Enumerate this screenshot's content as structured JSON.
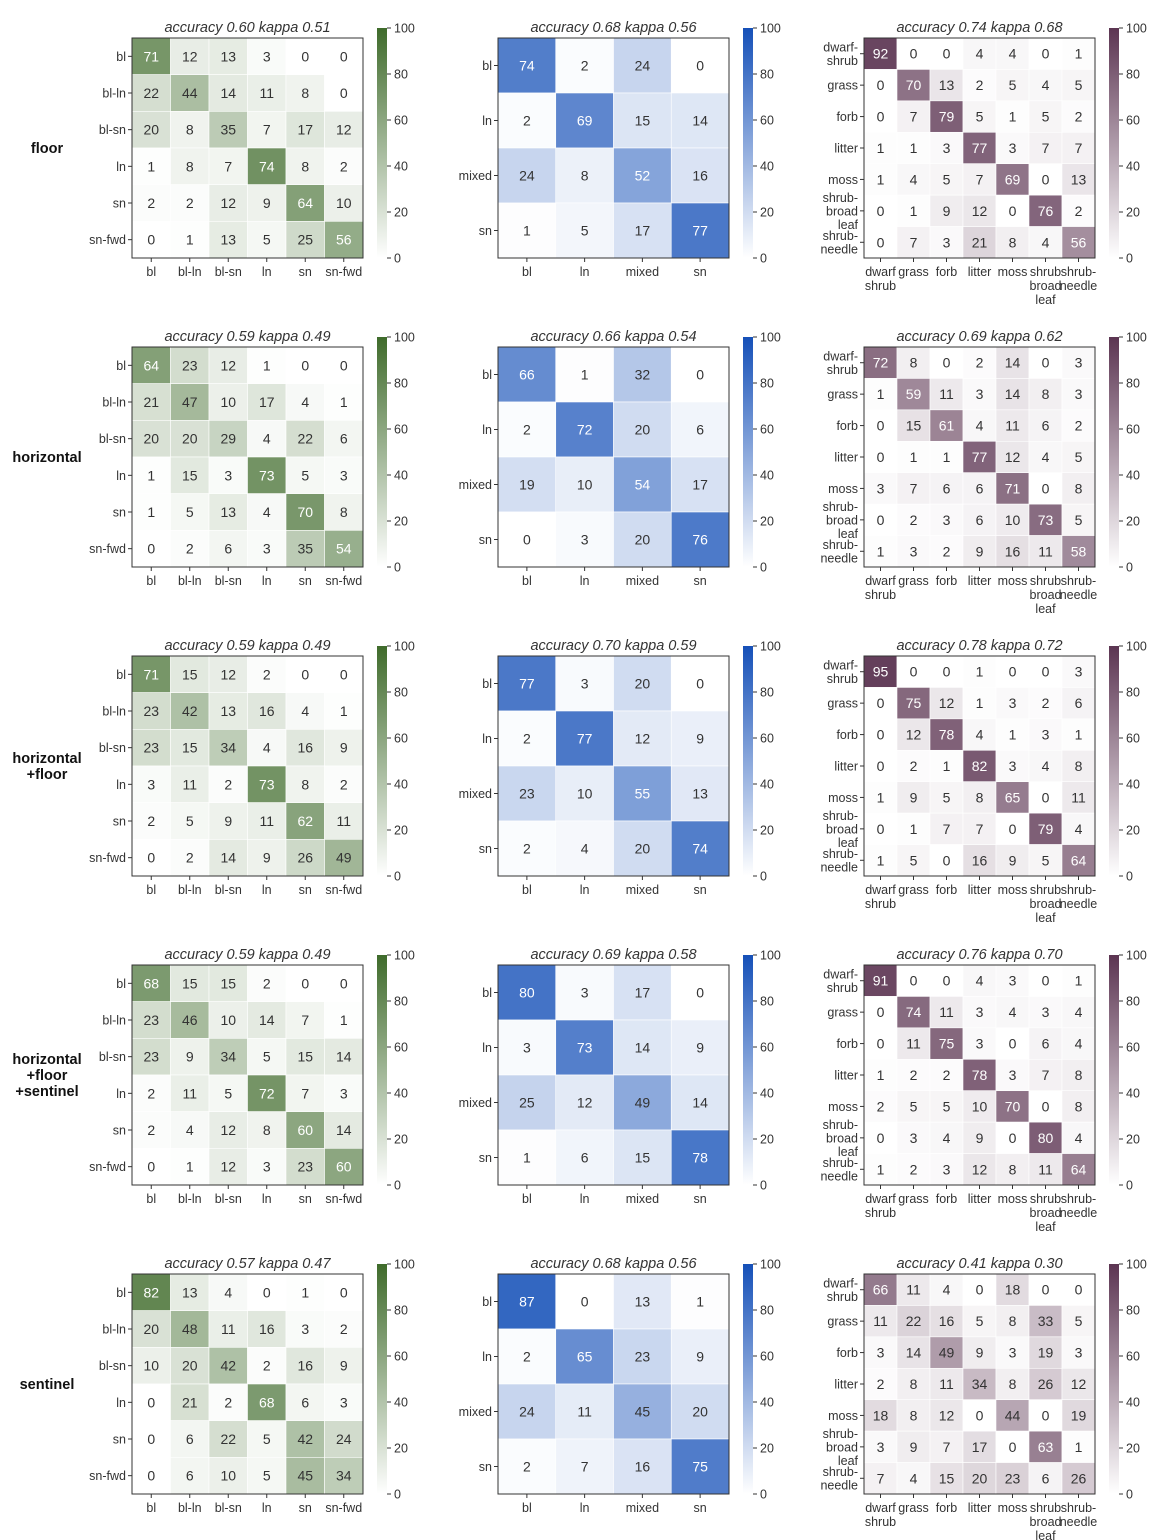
{
  "figure": {
    "row_labels": [
      [
        "floor"
      ],
      [
        "horizontal"
      ],
      [
        "horizontal",
        "+floor"
      ],
      [
        "horizontal",
        "+floor",
        "+sentinel"
      ],
      [
        "sentinel"
      ]
    ],
    "colorbar_ticks": [
      "100",
      "80",
      "60",
      "40",
      "20",
      "0"
    ]
  },
  "colors": {
    "green": "#3f6b2b",
    "blue": "#1550b8",
    "purple": "#5c3552"
  },
  "chart_data": [
    {
      "type": "heatmap",
      "row": 0,
      "col": 0,
      "color": "green",
      "title": "accuracy 0.60  kappa 0.51",
      "vmin": 0,
      "vmax": 100,
      "rows": [
        [
          "bl"
        ],
        [
          "bl-ln"
        ],
        [
          "bl-sn"
        ],
        [
          "ln"
        ],
        [
          "sn"
        ],
        [
          "sn-fwd"
        ]
      ],
      "cols": [
        [
          "bl"
        ],
        [
          "bl-ln"
        ],
        [
          "bl-sn"
        ],
        [
          "ln"
        ],
        [
          "sn"
        ],
        [
          "sn-fwd"
        ]
      ],
      "values": [
        [
          71,
          12,
          13,
          3,
          0,
          0
        ],
        [
          22,
          44,
          14,
          11,
          8,
          0
        ],
        [
          20,
          8,
          35,
          7,
          17,
          12
        ],
        [
          1,
          8,
          7,
          74,
          8,
          2
        ],
        [
          2,
          2,
          12,
          9,
          64,
          10
        ],
        [
          0,
          1,
          13,
          5,
          25,
          56
        ]
      ]
    },
    {
      "type": "heatmap",
      "row": 0,
      "col": 1,
      "color": "blue",
      "title": "accuracy 0.68  kappa 0.56",
      "vmin": 0,
      "vmax": 100,
      "rows": [
        [
          "bl"
        ],
        [
          "ln"
        ],
        [
          "mixed"
        ],
        [
          "sn"
        ]
      ],
      "cols": [
        [
          "bl"
        ],
        [
          "ln"
        ],
        [
          "mixed"
        ],
        [
          "sn"
        ]
      ],
      "values": [
        [
          74,
          2,
          24,
          0
        ],
        [
          2,
          69,
          15,
          14
        ],
        [
          24,
          8,
          52,
          16
        ],
        [
          1,
          5,
          17,
          77
        ]
      ]
    },
    {
      "type": "heatmap",
      "row": 0,
      "col": 2,
      "color": "purple",
      "title": "accuracy 0.74  kappa 0.68",
      "vmin": 0,
      "vmax": 100,
      "rows": [
        [
          "dwarf-",
          "shrub"
        ],
        [
          "grass"
        ],
        [
          "forb"
        ],
        [
          "litter"
        ],
        [
          "moss"
        ],
        [
          "shrub-",
          "broad",
          "leaf"
        ],
        [
          "shrub-",
          "needle"
        ]
      ],
      "cols": [
        [
          "dwarf",
          "shrub"
        ],
        [
          "grass"
        ],
        [
          "forb"
        ],
        [
          "litter"
        ],
        [
          "moss"
        ],
        [
          "shrub",
          "broad",
          "leaf"
        ],
        [
          "shrub-",
          "needle"
        ]
      ],
      "values": [
        [
          92,
          0,
          0,
          4,
          4,
          0,
          1
        ],
        [
          0,
          70,
          13,
          2,
          5,
          4,
          5
        ],
        [
          0,
          7,
          79,
          5,
          1,
          5,
          2
        ],
        [
          1,
          1,
          3,
          77,
          3,
          7,
          7
        ],
        [
          1,
          4,
          5,
          7,
          69,
          0,
          13
        ],
        [
          0,
          1,
          9,
          12,
          0,
          76,
          2
        ],
        [
          0,
          7,
          3,
          21,
          8,
          4,
          56
        ]
      ]
    },
    {
      "type": "heatmap",
      "row": 1,
      "col": 0,
      "color": "green",
      "title": "accuracy 0.59  kappa 0.49",
      "vmin": 0,
      "vmax": 100,
      "rows": [
        [
          "bl"
        ],
        [
          "bl-ln"
        ],
        [
          "bl-sn"
        ],
        [
          "ln"
        ],
        [
          "sn"
        ],
        [
          "sn-fwd"
        ]
      ],
      "cols": [
        [
          "bl"
        ],
        [
          "bl-ln"
        ],
        [
          "bl-sn"
        ],
        [
          "ln"
        ],
        [
          "sn"
        ],
        [
          "sn-fwd"
        ]
      ],
      "values": [
        [
          64,
          23,
          12,
          1,
          0,
          0
        ],
        [
          21,
          47,
          10,
          17,
          4,
          1
        ],
        [
          20,
          20,
          29,
          4,
          22,
          6
        ],
        [
          1,
          15,
          3,
          73,
          5,
          3
        ],
        [
          1,
          5,
          13,
          4,
          70,
          8
        ],
        [
          0,
          2,
          6,
          3,
          35,
          54
        ]
      ]
    },
    {
      "type": "heatmap",
      "row": 1,
      "col": 1,
      "color": "blue",
      "title": "accuracy 0.66  kappa 0.54",
      "vmin": 0,
      "vmax": 100,
      "rows": [
        [
          "bl"
        ],
        [
          "ln"
        ],
        [
          "mixed"
        ],
        [
          "sn"
        ]
      ],
      "cols": [
        [
          "bl"
        ],
        [
          "ln"
        ],
        [
          "mixed"
        ],
        [
          "sn"
        ]
      ],
      "values": [
        [
          66,
          1,
          32,
          0
        ],
        [
          2,
          72,
          20,
          6
        ],
        [
          19,
          10,
          54,
          17
        ],
        [
          0,
          3,
          20,
          76
        ]
      ]
    },
    {
      "type": "heatmap",
      "row": 1,
      "col": 2,
      "color": "purple",
      "title": "accuracy 0.69  kappa 0.62",
      "vmin": 0,
      "vmax": 100,
      "rows": [
        [
          "dwarf-",
          "shrub"
        ],
        [
          "grass"
        ],
        [
          "forb"
        ],
        [
          "litter"
        ],
        [
          "moss"
        ],
        [
          "shrub-",
          "broad",
          "leaf"
        ],
        [
          "shrub-",
          "needle"
        ]
      ],
      "cols": [
        [
          "dwarf",
          "shrub"
        ],
        [
          "grass"
        ],
        [
          "forb"
        ],
        [
          "litter"
        ],
        [
          "moss"
        ],
        [
          "shrub",
          "broad",
          "leaf"
        ],
        [
          "shrub-",
          "needle"
        ]
      ],
      "values": [
        [
          72,
          8,
          0,
          2,
          14,
          0,
          3
        ],
        [
          1,
          59,
          11,
          3,
          14,
          8,
          3
        ],
        [
          0,
          15,
          61,
          4,
          11,
          6,
          2
        ],
        [
          0,
          1,
          1,
          77,
          12,
          4,
          5
        ],
        [
          3,
          7,
          6,
          6,
          71,
          0,
          8
        ],
        [
          0,
          2,
          3,
          6,
          10,
          73,
          5
        ],
        [
          1,
          3,
          2,
          9,
          16,
          11,
          58
        ]
      ]
    },
    {
      "type": "heatmap",
      "row": 2,
      "col": 0,
      "color": "green",
      "title": "accuracy 0.59  kappa 0.49",
      "vmin": 0,
      "vmax": 100,
      "rows": [
        [
          "bl"
        ],
        [
          "bl-ln"
        ],
        [
          "bl-sn"
        ],
        [
          "ln"
        ],
        [
          "sn"
        ],
        [
          "sn-fwd"
        ]
      ],
      "cols": [
        [
          "bl"
        ],
        [
          "bl-ln"
        ],
        [
          "bl-sn"
        ],
        [
          "ln"
        ],
        [
          "sn"
        ],
        [
          "sn-fwd"
        ]
      ],
      "values": [
        [
          71,
          15,
          12,
          2,
          0,
          0
        ],
        [
          23,
          42,
          13,
          16,
          4,
          1
        ],
        [
          23,
          15,
          34,
          4,
          16,
          9
        ],
        [
          3,
          11,
          2,
          73,
          8,
          2
        ],
        [
          2,
          5,
          9,
          11,
          62,
          11
        ],
        [
          0,
          2,
          14,
          9,
          26,
          49
        ]
      ]
    },
    {
      "type": "heatmap",
      "row": 2,
      "col": 1,
      "color": "blue",
      "title": "accuracy 0.70  kappa 0.59",
      "vmin": 0,
      "vmax": 100,
      "rows": [
        [
          "bl"
        ],
        [
          "ln"
        ],
        [
          "mixed"
        ],
        [
          "sn"
        ]
      ],
      "cols": [
        [
          "bl"
        ],
        [
          "ln"
        ],
        [
          "mixed"
        ],
        [
          "sn"
        ]
      ],
      "values": [
        [
          77,
          3,
          20,
          0
        ],
        [
          2,
          77,
          12,
          9
        ],
        [
          23,
          10,
          55,
          13
        ],
        [
          2,
          4,
          20,
          74
        ]
      ]
    },
    {
      "type": "heatmap",
      "row": 2,
      "col": 2,
      "color": "purple",
      "title": "accuracy 0.78  kappa 0.72",
      "vmin": 0,
      "vmax": 100,
      "rows": [
        [
          "dwarf-",
          "shrub"
        ],
        [
          "grass"
        ],
        [
          "forb"
        ],
        [
          "litter"
        ],
        [
          "moss"
        ],
        [
          "shrub-",
          "broad",
          "leaf"
        ],
        [
          "shrub-",
          "needle"
        ]
      ],
      "cols": [
        [
          "dwarf",
          "shrub"
        ],
        [
          "grass"
        ],
        [
          "forb"
        ],
        [
          "litter"
        ],
        [
          "moss"
        ],
        [
          "shrub",
          "broad",
          "leaf"
        ],
        [
          "shrub-",
          "needle"
        ]
      ],
      "values": [
        [
          95,
          0,
          0,
          1,
          0,
          0,
          3
        ],
        [
          0,
          75,
          12,
          1,
          3,
          2,
          6
        ],
        [
          0,
          12,
          78,
          4,
          1,
          3,
          1
        ],
        [
          0,
          2,
          1,
          82,
          3,
          4,
          8
        ],
        [
          1,
          9,
          5,
          8,
          65,
          0,
          11
        ],
        [
          0,
          1,
          7,
          7,
          0,
          79,
          4
        ],
        [
          1,
          5,
          0,
          16,
          9,
          5,
          64
        ]
      ]
    },
    {
      "type": "heatmap",
      "row": 3,
      "col": 0,
      "color": "green",
      "title": "accuracy 0.59  kappa 0.49",
      "vmin": 0,
      "vmax": 100,
      "rows": [
        [
          "bl"
        ],
        [
          "bl-ln"
        ],
        [
          "bl-sn"
        ],
        [
          "ln"
        ],
        [
          "sn"
        ],
        [
          "sn-fwd"
        ]
      ],
      "cols": [
        [
          "bl"
        ],
        [
          "bl-ln"
        ],
        [
          "bl-sn"
        ],
        [
          "ln"
        ],
        [
          "sn"
        ],
        [
          "sn-fwd"
        ]
      ],
      "values": [
        [
          68,
          15,
          15,
          2,
          0,
          0
        ],
        [
          23,
          46,
          10,
          14,
          7,
          1
        ],
        [
          23,
          9,
          34,
          5,
          15,
          14
        ],
        [
          2,
          11,
          5,
          72,
          7,
          3
        ],
        [
          2,
          4,
          12,
          8,
          60,
          14
        ],
        [
          0,
          1,
          12,
          3,
          23,
          60
        ]
      ]
    },
    {
      "type": "heatmap",
      "row": 3,
      "col": 1,
      "color": "blue",
      "title": "accuracy 0.69  kappa 0.58",
      "vmin": 0,
      "vmax": 100,
      "rows": [
        [
          "bl"
        ],
        [
          "ln"
        ],
        [
          "mixed"
        ],
        [
          "sn"
        ]
      ],
      "cols": [
        [
          "bl"
        ],
        [
          "ln"
        ],
        [
          "mixed"
        ],
        [
          "sn"
        ]
      ],
      "values": [
        [
          80,
          3,
          17,
          0
        ],
        [
          3,
          73,
          14,
          9
        ],
        [
          25,
          12,
          49,
          14
        ],
        [
          1,
          6,
          15,
          78
        ]
      ]
    },
    {
      "type": "heatmap",
      "row": 3,
      "col": 2,
      "color": "purple",
      "title": "accuracy 0.76  kappa 0.70",
      "vmin": 0,
      "vmax": 100,
      "rows": [
        [
          "dwarf-",
          "shrub"
        ],
        [
          "grass"
        ],
        [
          "forb"
        ],
        [
          "litter"
        ],
        [
          "moss"
        ],
        [
          "shrub-",
          "broad",
          "leaf"
        ],
        [
          "shrub-",
          "needle"
        ]
      ],
      "cols": [
        [
          "dwarf",
          "shrub"
        ],
        [
          "grass"
        ],
        [
          "forb"
        ],
        [
          "litter"
        ],
        [
          "moss"
        ],
        [
          "shrub",
          "broad",
          "leaf"
        ],
        [
          "shrub-",
          "needle"
        ]
      ],
      "values": [
        [
          91,
          0,
          0,
          4,
          3,
          0,
          1
        ],
        [
          0,
          74,
          11,
          3,
          4,
          3,
          4
        ],
        [
          0,
          11,
          75,
          3,
          0,
          6,
          4
        ],
        [
          1,
          2,
          2,
          78,
          3,
          7,
          8
        ],
        [
          2,
          5,
          5,
          10,
          70,
          0,
          8
        ],
        [
          0,
          3,
          4,
          9,
          0,
          80,
          4
        ],
        [
          1,
          2,
          3,
          12,
          8,
          11,
          64
        ]
      ]
    },
    {
      "type": "heatmap",
      "row": 4,
      "col": 0,
      "color": "green",
      "title": "accuracy 0.57  kappa 0.47",
      "vmin": 0,
      "vmax": 100,
      "rows": [
        [
          "bl"
        ],
        [
          "bl-ln"
        ],
        [
          "bl-sn"
        ],
        [
          "ln"
        ],
        [
          "sn"
        ],
        [
          "sn-fwd"
        ]
      ],
      "cols": [
        [
          "bl"
        ],
        [
          "bl-ln"
        ],
        [
          "bl-sn"
        ],
        [
          "ln"
        ],
        [
          "sn"
        ],
        [
          "sn-fwd"
        ]
      ],
      "values": [
        [
          82,
          13,
          4,
          0,
          1,
          0
        ],
        [
          20,
          48,
          11,
          16,
          3,
          2
        ],
        [
          10,
          20,
          42,
          2,
          16,
          9
        ],
        [
          0,
          21,
          2,
          68,
          6,
          3
        ],
        [
          0,
          6,
          22,
          5,
          42,
          24
        ],
        [
          0,
          6,
          10,
          5,
          45,
          34
        ]
      ]
    },
    {
      "type": "heatmap",
      "row": 4,
      "col": 1,
      "color": "blue",
      "title": "accuracy 0.68  kappa 0.56",
      "vmin": 0,
      "vmax": 100,
      "rows": [
        [
          "bl"
        ],
        [
          "ln"
        ],
        [
          "mixed"
        ],
        [
          "sn"
        ]
      ],
      "cols": [
        [
          "bl"
        ],
        [
          "ln"
        ],
        [
          "mixed"
        ],
        [
          "sn"
        ]
      ],
      "values": [
        [
          87,
          0,
          13,
          1
        ],
        [
          2,
          65,
          23,
          9
        ],
        [
          24,
          11,
          45,
          20
        ],
        [
          2,
          7,
          16,
          75
        ]
      ]
    },
    {
      "type": "heatmap",
      "row": 4,
      "col": 2,
      "color": "purple",
      "title": "accuracy 0.41  kappa 0.30",
      "vmin": 0,
      "vmax": 100,
      "rows": [
        [
          "dwarf-",
          "shrub"
        ],
        [
          "grass"
        ],
        [
          "forb"
        ],
        [
          "litter"
        ],
        [
          "moss"
        ],
        [
          "shrub-",
          "broad",
          "leaf"
        ],
        [
          "shrub-",
          "needle"
        ]
      ],
      "cols": [
        [
          "dwarf",
          "shrub"
        ],
        [
          "grass"
        ],
        [
          "forb"
        ],
        [
          "litter"
        ],
        [
          "moss"
        ],
        [
          "shrub",
          "broad",
          "leaf"
        ],
        [
          "shrub-",
          "needle"
        ]
      ],
      "values": [
        [
          66,
          11,
          4,
          0,
          18,
          0,
          0
        ],
        [
          11,
          22,
          16,
          5,
          8,
          33,
          5
        ],
        [
          3,
          14,
          49,
          9,
          3,
          19,
          3
        ],
        [
          2,
          8,
          11,
          34,
          8,
          26,
          12
        ],
        [
          18,
          8,
          12,
          0,
          44,
          0,
          19
        ],
        [
          3,
          9,
          7,
          17,
          0,
          63,
          1
        ],
        [
          7,
          4,
          15,
          20,
          23,
          6,
          26
        ]
      ]
    }
  ]
}
